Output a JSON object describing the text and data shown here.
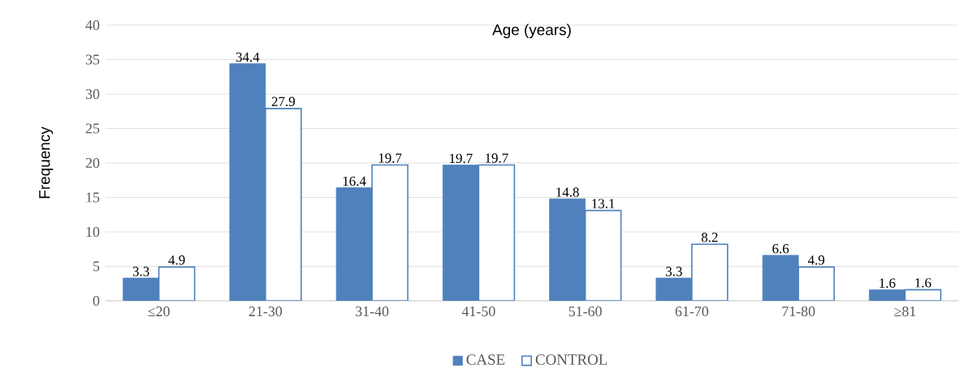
{
  "chart_data": {
    "type": "bar",
    "title": "Age (years)",
    "ylabel": "Frequency",
    "categories": [
      "≤20",
      "21-30",
      "31-40",
      "41-50",
      "51-60",
      "61-70",
      "71-80",
      "≥81"
    ],
    "series": [
      {
        "name": "CASE",
        "color": "#4f81bd",
        "values": [
          3.3,
          34.4,
          16.4,
          19.7,
          14.8,
          3.3,
          6.6,
          1.6
        ]
      },
      {
        "name": "CONTROL",
        "color": "#4f81bd",
        "values": [
          4.9,
          27.9,
          19.7,
          19.7,
          13.1,
          8.2,
          4.9,
          1.6
        ]
      }
    ],
    "ylim": [
      0,
      40
    ],
    "yticks": [
      0,
      5,
      10,
      15,
      20,
      25,
      30,
      35,
      40
    ],
    "grid": "y",
    "legend": "bottom",
    "data_labels": true
  }
}
